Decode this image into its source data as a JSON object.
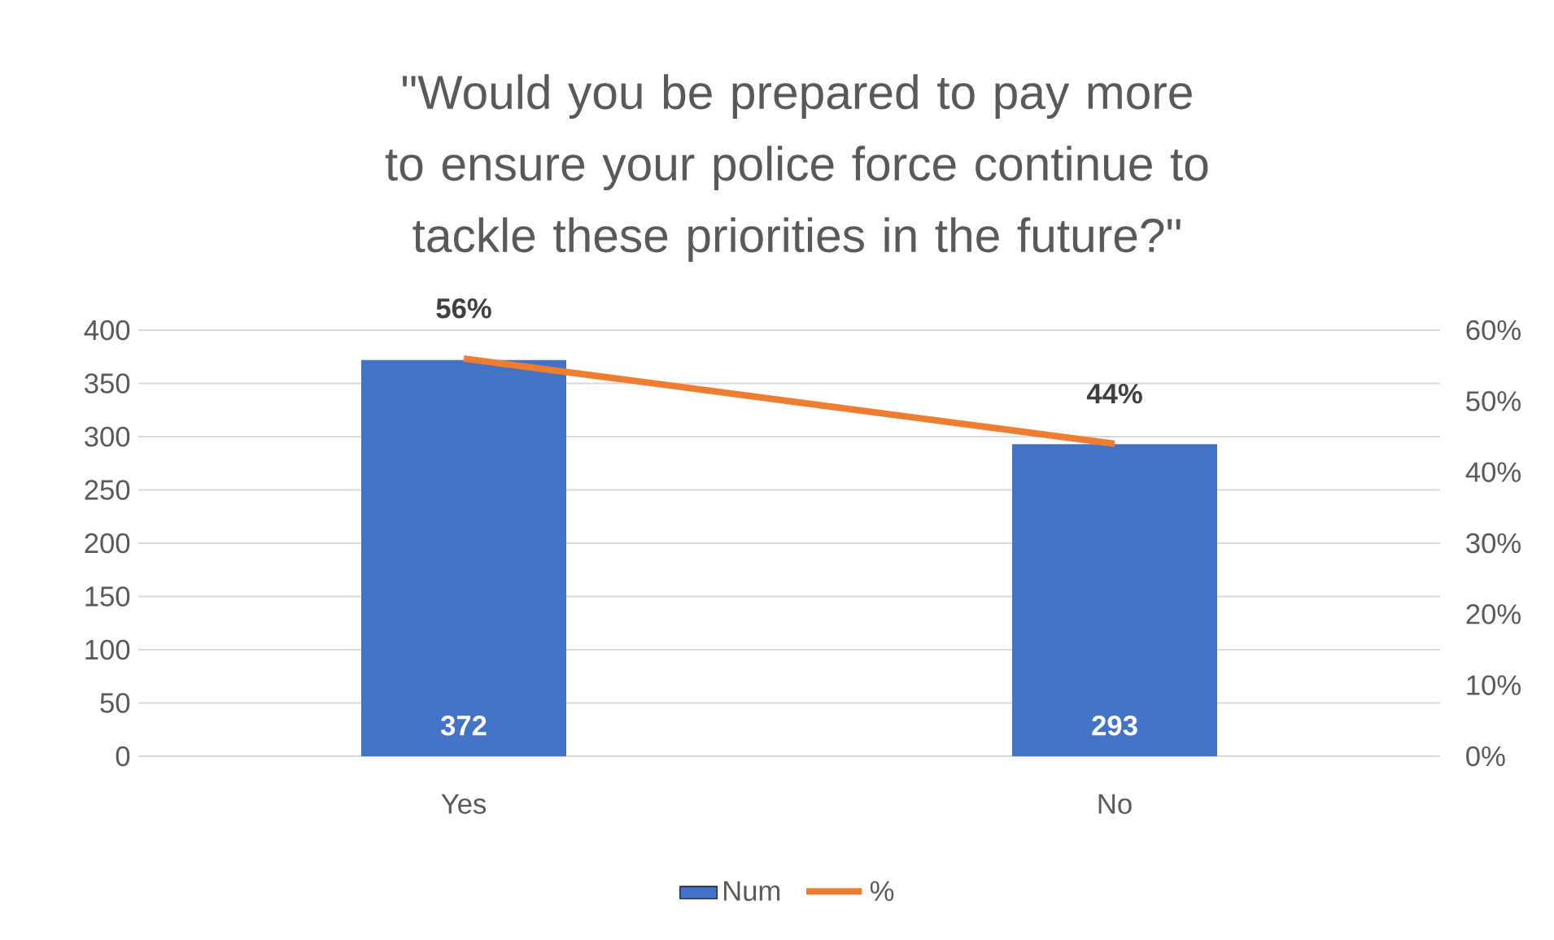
{
  "chart_data": {
    "type": "bar",
    "title": "\"Would you be prepared to pay more to ensure your police force continue to tackle these priorities in the future?\"",
    "categories": [
      "Yes",
      "No"
    ],
    "series": [
      {
        "name": "Num",
        "color": "#4472c4",
        "values": [
          372,
          293
        ],
        "value_labels": [
          "372",
          "293"
        ]
      },
      {
        "name": "%",
        "type": "line",
        "axis": "y2",
        "color": "#ed7d31",
        "values": [
          56,
          44
        ],
        "value_labels": [
          "56%",
          "44%"
        ]
      }
    ],
    "ylim": [
      0,
      400
    ],
    "yticks": [
      0,
      50,
      100,
      150,
      200,
      250,
      300,
      350,
      400
    ],
    "y2lim": [
      0,
      60
    ],
    "y2ticks": [
      {
        "value": 0,
        "label": "0%"
      },
      {
        "value": 10,
        "label": "10%"
      },
      {
        "value": 20,
        "label": "20%"
      },
      {
        "value": 30,
        "label": "30%"
      },
      {
        "value": 40,
        "label": "40%"
      },
      {
        "value": 50,
        "label": "50%"
      },
      {
        "value": 60,
        "label": "60%"
      }
    ],
    "grid": "y",
    "legend": "bottom"
  }
}
